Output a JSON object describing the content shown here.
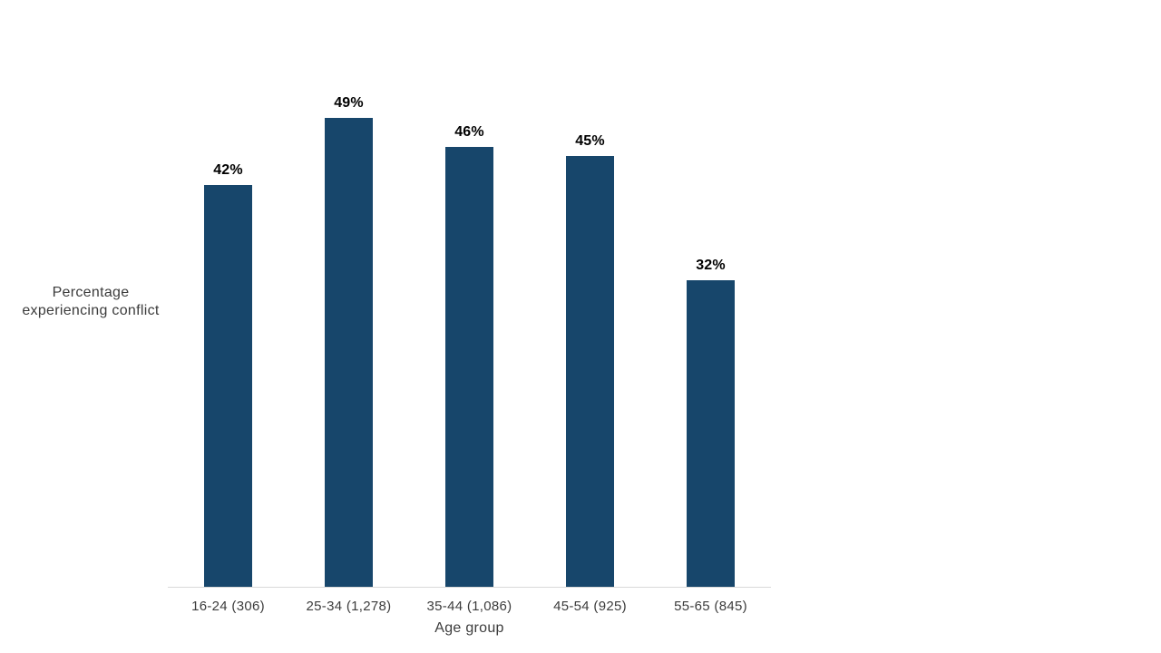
{
  "chart_data": {
    "type": "bar",
    "title": "",
    "categories": [
      "16-24 (306)",
      "25-34 (1,278)",
      "35-44 (1,086)",
      "45-54 (925)",
      "55-65 (845)"
    ],
    "values": [
      42,
      49,
      46,
      45,
      32
    ],
    "value_labels": [
      "42%",
      "49%",
      "46%",
      "45%",
      "32%"
    ],
    "xlabel": "Age group",
    "ylabel": "Percentage\nexperiencing conflict",
    "ylim": [
      0,
      60
    ],
    "grid": false,
    "legend": "none",
    "bar_color": "#17466B",
    "axis_line_color": "#D9D9D9",
    "value_label_color": "#000000",
    "tick_label_color": "#3c3c3c"
  }
}
